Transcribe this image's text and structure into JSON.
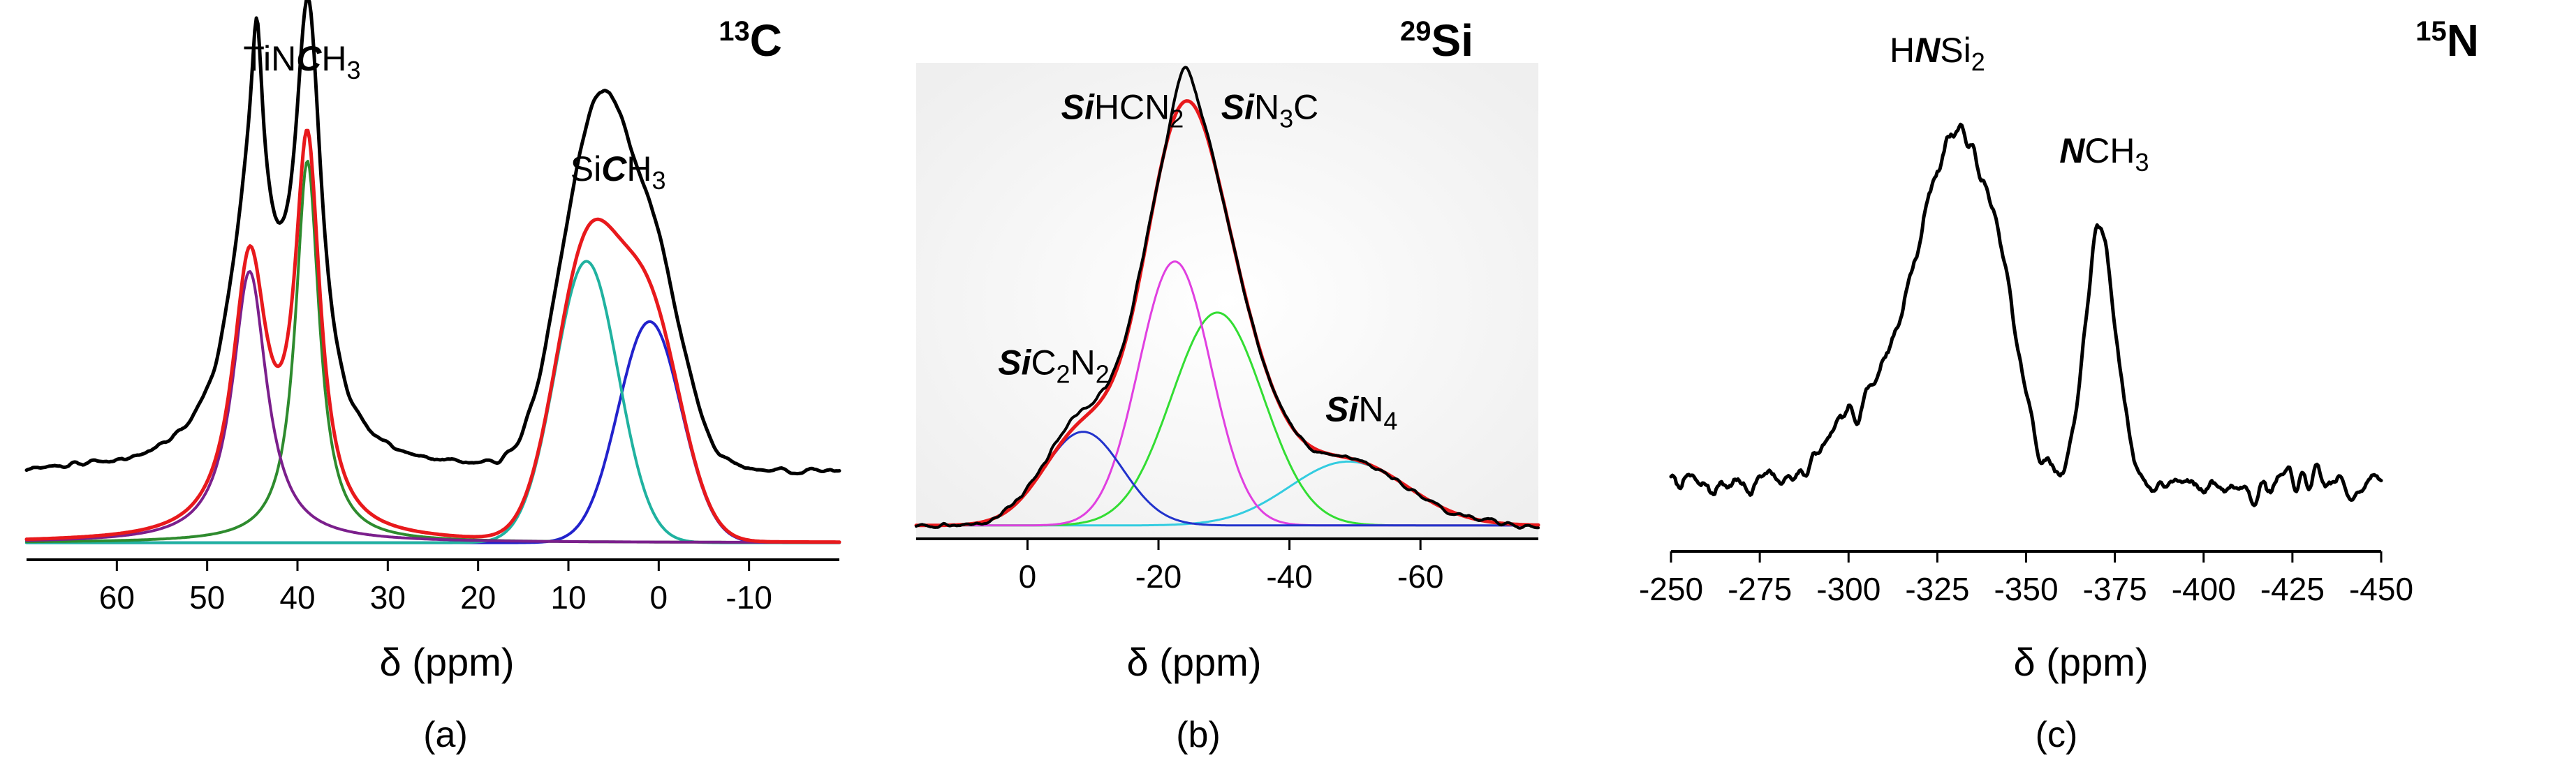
{
  "chart_data": [
    {
      "id": "a",
      "type": "line",
      "nucleus": "13C",
      "nucleus_mass": "13",
      "nucleus_symbol": "C",
      "panel_label": "(a)",
      "xlabel": "δ (ppm)",
      "xlim": [
        70,
        -20
      ],
      "xticks": [
        60,
        50,
        40,
        30,
        20,
        10,
        0,
        -10
      ],
      "xtick_labels": [
        "60",
        "50",
        "40",
        "30",
        "20",
        "10",
        "0",
        "-10"
      ],
      "annotations": [
        {
          "name": "peak-label-tincH3",
          "parts": [
            {
              "t": "TiN"
            },
            {
              "t": "C",
              "style": "bi"
            },
            {
              "t": "H"
            },
            {
              "t": "3",
              "style": "sub"
            }
          ],
          "at": [
            39.5,
            0.96
          ]
        },
        {
          "name": "peak-label-sicH3",
          "parts": [
            {
              "t": "Si"
            },
            {
              "t": "C",
              "style": "bi"
            },
            {
              "t": "H"
            },
            {
              "t": "3",
              "style": "sub"
            }
          ],
          "at": [
            4.5,
            0.74
          ]
        }
      ],
      "baseline": 0.02,
      "series": [
        {
          "name": "experimental",
          "color": "#000000",
          "width": 5,
          "noise": 0.009,
          "seed": 11,
          "offset": 0.14,
          "peaks": [
            [
              45,
              3,
              0.54,
              1
            ],
            [
              44.5,
              0.7,
              0.3,
              1
            ],
            [
              38.8,
              1.8,
              0.84,
              1
            ],
            [
              8,
              3.5,
              0.56,
              0
            ],
            [
              1,
              3.5,
              0.44,
              0
            ],
            [
              5.5,
              2.2,
              0.12,
              0
            ]
          ]
        },
        {
          "name": "sum fit",
          "color": "#e8191c",
          "width": 5,
          "peaks": [
            [
              45.3,
              2.3,
              0.54,
              1
            ],
            [
              38.9,
              1.7,
              0.76,
              1
            ],
            [
              8,
              3.5,
              0.56,
              0
            ],
            [
              1,
              3.5,
              0.44,
              0
            ]
          ]
        },
        {
          "name": "component 45 ppm",
          "color": "#7b1f8c",
          "width": 4,
          "peaks": [
            [
              45.3,
              2.3,
              0.54,
              1
            ]
          ]
        },
        {
          "name": "component 39 ppm",
          "color": "#2e8b2e",
          "width": 4,
          "peaks": [
            [
              38.9,
              1.6,
              0.76,
              1
            ]
          ]
        },
        {
          "name": "component 8 ppm",
          "color": "#20b2a0",
          "width": 4,
          "peaks": [
            [
              8,
              3.5,
              0.56,
              0
            ]
          ]
        },
        {
          "name": "component 1 ppm",
          "color": "#2222cc",
          "width": 4,
          "peaks": [
            [
              1,
              3.5,
              0.44,
              0
            ]
          ]
        }
      ]
    },
    {
      "id": "b",
      "type": "line",
      "nucleus": "29Si",
      "nucleus_mass": "29",
      "nucleus_symbol": "Si",
      "panel_label": "(b)",
      "xlabel": "δ (ppm)",
      "xlim": [
        17,
        -78
      ],
      "xticks": [
        0,
        -20,
        -40,
        -60
      ],
      "xtick_labels": [
        "0",
        "-20",
        "-40",
        "-60"
      ],
      "annotations": [
        {
          "name": "peak-label-sic2n2",
          "parts": [
            {
              "t": "Si",
              "style": "bi"
            },
            {
              "t": "C"
            },
            {
              "t": "2",
              "style": "sub"
            },
            {
              "t": "N"
            },
            {
              "t": "2",
              "style": "sub"
            }
          ],
          "at": [
            -4,
            0.37
          ]
        },
        {
          "name": "peak-label-sihcn2",
          "parts": [
            {
              "t": "Si",
              "style": "bi"
            },
            {
              "t": "HCN"
            },
            {
              "t": "2",
              "style": "sub"
            }
          ],
          "at": [
            -14.5,
            0.97
          ]
        },
        {
          "name": "peak-label-sin3c",
          "parts": [
            {
              "t": "Si",
              "style": "bi"
            },
            {
              "t": "N"
            },
            {
              "t": "3",
              "style": "sub"
            },
            {
              "t": "C"
            }
          ],
          "at": [
            -37,
            0.97
          ]
        },
        {
          "name": "peak-label-sin4",
          "parts": [
            {
              "t": "Si",
              "style": "bi"
            },
            {
              "t": "N"
            },
            {
              "t": "4",
              "style": "sub"
            }
          ],
          "at": [
            -51,
            0.26
          ]
        }
      ],
      "baseline": 0.015,
      "series": [
        {
          "name": "experimental",
          "color": "#000000",
          "width": 4,
          "noise": 0.01,
          "seed": 23,
          "offset": 0,
          "peaks": [
            [
              -8.5,
              6,
              0.24,
              0
            ],
            [
              -22.5,
              5.5,
              0.62,
              0
            ],
            [
              -29,
              7,
              0.5,
              0
            ],
            [
              -49,
              9,
              0.15,
              0
            ],
            [
              -24,
              1.4,
              0.08,
              0
            ]
          ]
        },
        {
          "name": "sum fit",
          "color": "#e8191c",
          "width": 5,
          "peaks": [
            [
              -8.5,
              6,
              0.22,
              0
            ],
            [
              -22.5,
              5.5,
              0.62,
              0
            ],
            [
              -29,
              7,
              0.5,
              0
            ],
            [
              -49,
              9,
              0.15,
              0
            ]
          ]
        },
        {
          "name": "component -8 ppm",
          "color": "#2233cc",
          "width": 3,
          "peaks": [
            [
              -8.5,
              6,
              0.22,
              0
            ]
          ]
        },
        {
          "name": "component -22 ppm",
          "color": "#e040e0",
          "width": 3,
          "peaks": [
            [
              -22.5,
              5.5,
              0.62,
              0
            ]
          ]
        },
        {
          "name": "component -29 ppm",
          "color": "#33dd33",
          "width": 3,
          "peaks": [
            [
              -29,
              7,
              0.5,
              0
            ]
          ]
        },
        {
          "name": "component -49 ppm",
          "color": "#33cce0",
          "width": 3,
          "peaks": [
            [
              -49,
              9,
              0.15,
              0
            ]
          ]
        }
      ]
    },
    {
      "id": "c",
      "type": "line",
      "nucleus": "15N",
      "nucleus_mass": "15",
      "nucleus_symbol": "N",
      "panel_label": "(c)",
      "xlabel": "δ (ppm)",
      "xlim": [
        -250,
        -450
      ],
      "xticks": [
        -250,
        -275,
        -300,
        -325,
        -350,
        -375,
        -400,
        -425,
        -450
      ],
      "xtick_labels": [
        "-250",
        "-275",
        "-300",
        "-325",
        "-350",
        "-375",
        "-400",
        "-425",
        "-450"
      ],
      "annotations": [
        {
          "name": "peak-label-hnsi2",
          "parts": [
            {
              "t": "H"
            },
            {
              "t": "N",
              "style": "bi"
            },
            {
              "t": "Si"
            },
            {
              "t": "2",
              "style": "sub"
            }
          ],
          "at": [
            -325,
            0.96
          ]
        },
        {
          "name": "peak-label-nch3",
          "parts": [
            {
              "t": "N",
              "style": "bi"
            },
            {
              "t": "CH"
            },
            {
              "t": "3",
              "style": "sub"
            }
          ],
          "at": [
            -372,
            0.76
          ]
        }
      ],
      "baseline": 0.0,
      "series": [
        {
          "name": "experimental",
          "color": "#000000",
          "width": 5,
          "noise": 0.045,
          "seed": 7,
          "offset": 0.12,
          "peaks": [
            [
              -331,
              10,
              0.66,
              0
            ],
            [
              -344,
              5,
              0.14,
              0
            ],
            [
              -310,
              12,
              0.18,
              0
            ],
            [
              -371,
              4.5,
              0.5,
              0
            ]
          ]
        }
      ]
    }
  ]
}
